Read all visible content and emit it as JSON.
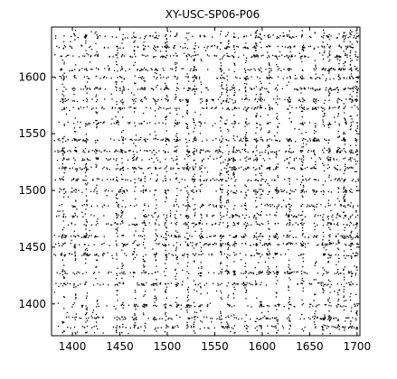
{
  "chart_data": {
    "type": "scatter",
    "title": "XY-USC-SP06-P06",
    "xlabel": "",
    "ylabel": "",
    "xlim": [
      1378,
      1703
    ],
    "ylim": [
      1372,
      1644
    ],
    "x_ticks": [
      1400,
      1450,
      1500,
      1550,
      1600,
      1650,
      1700
    ],
    "y_ticks": [
      1400,
      1450,
      1500,
      1550,
      1600
    ],
    "grid": false,
    "legend": "none",
    "marker_color": "#000000",
    "description": "Dense point-pattern (node coordinate pairs) forming banded rows and columns.",
    "band_rows_y": [
      1380,
      1388,
      1399,
      1418,
      1428,
      1444,
      1453,
      1460,
      1471,
      1478,
      1487,
      1500,
      1510,
      1520,
      1528,
      1535,
      1545,
      1560,
      1573,
      1580,
      1590,
      1600,
      1607,
      1619,
      1627,
      1636
    ],
    "band_cols_x": [
      1390,
      1402,
      1414,
      1425,
      1446,
      1452,
      1465,
      1475,
      1487,
      1498,
      1509,
      1521,
      1528,
      1535,
      1556,
      1563,
      1570,
      1582,
      1593,
      1598,
      1606,
      1615,
      1628,
      1642,
      1655,
      1664,
      1670,
      1680,
      1686,
      1693,
      1699
    ]
  }
}
